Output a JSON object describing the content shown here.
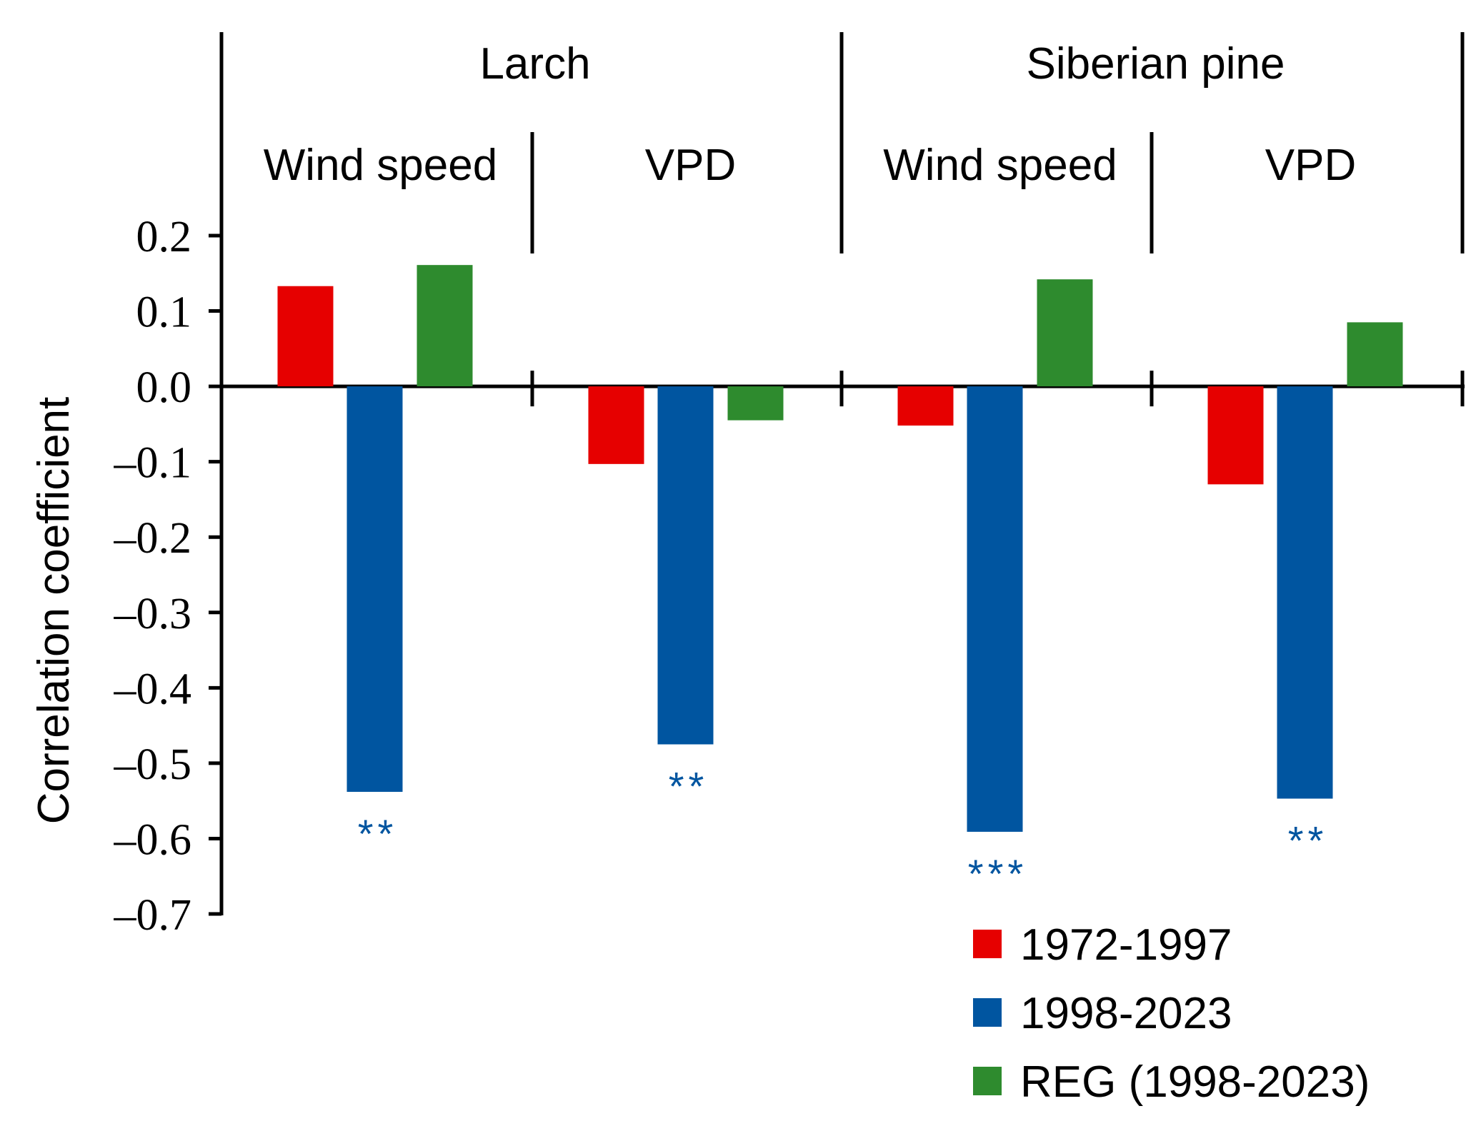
{
  "chart_data": {
    "type": "bar",
    "title": "",
    "ylabel": "Correlation coefficient",
    "xlabel": "",
    "ylim": [
      -0.7,
      0.2
    ],
    "yticks": [
      "0.2",
      "0.1",
      "0.0",
      "–0.1",
      "–0.2",
      "–0.3",
      "–0.4",
      "–0.5",
      "–0.6",
      "–0.7"
    ],
    "ytick_values": [
      0.2,
      0.1,
      0.0,
      -0.1,
      -0.2,
      -0.3,
      -0.4,
      -0.5,
      -0.6,
      -0.7
    ],
    "groups": [
      "Larch",
      "Siberian pine"
    ],
    "categories": [
      {
        "group": "Larch",
        "label": "Wind speed"
      },
      {
        "group": "Larch",
        "label": "VPD"
      },
      {
        "group": "Siberian pine",
        "label": "Wind speed"
      },
      {
        "group": "Siberian pine",
        "label": "VPD"
      }
    ],
    "series": [
      {
        "name": "1972-1997",
        "color": "#e60000",
        "values": [
          0.133,
          -0.103,
          -0.052,
          -0.13
        ]
      },
      {
        "name": "1998-2023",
        "color": "#0055a0",
        "values": [
          -0.538,
          -0.475,
          -0.591,
          -0.547
        ]
      },
      {
        "name": "REG (1998-2023)",
        "color": "#2e8b2e",
        "values": [
          0.161,
          -0.045,
          0.142,
          0.085
        ]
      }
    ],
    "significance": [
      {
        "category": 0,
        "series": 1,
        "label": "**"
      },
      {
        "category": 1,
        "series": 1,
        "label": "**"
      },
      {
        "category": 2,
        "series": 1,
        "label": "***"
      },
      {
        "category": 3,
        "series": 1,
        "label": "**"
      }
    ],
    "legend_position": "bottom-right",
    "grid": false
  }
}
